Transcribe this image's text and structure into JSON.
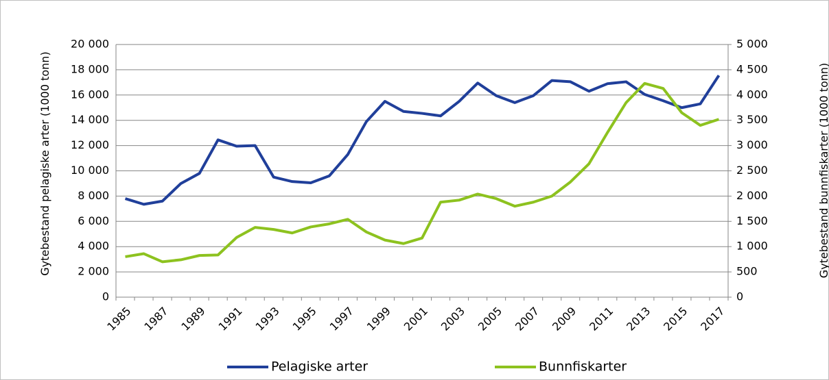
{
  "chart_data": {
    "type": "line",
    "y_label": "Gytebestand pelagiske arter (1000 tonn)",
    "y2_label": "Gytebestand bunnfiskarter (1000 tonn)",
    "categories": [
      "1985",
      null,
      "1987",
      null,
      "1989",
      null,
      "1991",
      null,
      "1993",
      null,
      "1995",
      null,
      "1997",
      null,
      "1999",
      null,
      "2001",
      null,
      "2003",
      null,
      "2005",
      null,
      "2007",
      null,
      "2009",
      null,
      "2011",
      null,
      "2013",
      null,
      "2015",
      null,
      "2017"
    ],
    "series": [
      {
        "name": "Pelagiske arter",
        "color": "#203f9a",
        "values": [
          7800,
          7350,
          7600,
          9000,
          9800,
          12450,
          11950,
          12000,
          9500,
          9150,
          9050,
          9600,
          11300,
          13900,
          15500,
          14700,
          14550,
          14350,
          15500,
          16950,
          15950,
          15400,
          15950,
          17150,
          17050,
          16300,
          16900,
          17050,
          16050,
          15550,
          15000,
          15300,
          17550
        ]
      },
      {
        "name": "Bunnfiskarter",
        "color": "#8dc21f",
        "axis": "y2",
        "values": [
          800,
          860,
          700,
          740,
          825,
          835,
          1180,
          1380,
          1340,
          1270,
          1390,
          1450,
          1540,
          1290,
          1130,
          1060,
          1170,
          1880,
          1920,
          2040,
          1950,
          1800,
          1880,
          2000,
          2280,
          2640,
          3260,
          3850,
          4230,
          4130,
          3650,
          3400,
          3520
        ]
      }
    ],
    "ylim": [
      0,
      20000
    ],
    "yticks": [
      0,
      {
        "value": 2000,
        "label": "2 000"
      },
      {
        "value": 4000,
        "label": "4 000"
      },
      {
        "value": 6000,
        "label": "6 000"
      },
      {
        "value": 8000,
        "label": "8 000"
      },
      {
        "value": 10000,
        "label": "10 000"
      },
      {
        "value": 12000,
        "label": "12 000"
      },
      {
        "value": 14000,
        "label": "14 000"
      },
      {
        "value": 16000,
        "label": "16 000"
      },
      {
        "value": 18000,
        "label": "18 000"
      },
      {
        "value": 20000,
        "label": "20 000"
      }
    ],
    "y2lim": [
      0,
      5000
    ],
    "y2ticks": [
      0,
      500,
      {
        "value": 1000,
        "label": "1 000"
      },
      {
        "value": 1500,
        "label": "1 500"
      },
      {
        "value": 2000,
        "label": "2 000"
      },
      {
        "value": 2500,
        "label": "2 500"
      },
      {
        "value": 3000,
        "label": "3 000"
      },
      {
        "value": 3500,
        "label": "3 500"
      },
      {
        "value": 4000,
        "label": "4 000"
      },
      {
        "value": 4500,
        "label": "4 500"
      },
      {
        "value": 5000,
        "label": "5 000"
      }
    ],
    "grid": true,
    "legend": "bottom"
  }
}
